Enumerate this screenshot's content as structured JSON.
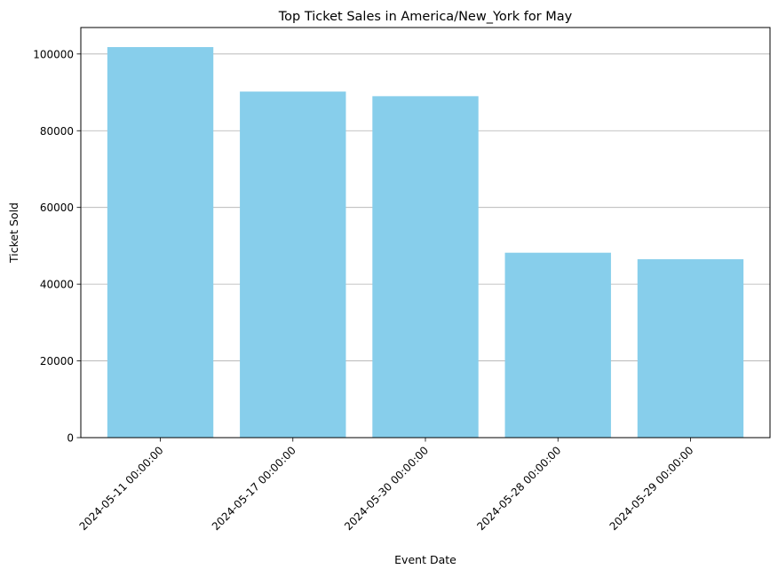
{
  "chart_data": {
    "type": "bar",
    "title": "Top Ticket Sales in America/New_York for May",
    "xlabel": "Event Date",
    "ylabel": "Ticket Sold",
    "categories": [
      "2024-05-11 00:00:00",
      "2024-05-17 00:00:00",
      "2024-05-30 00:00:00",
      "2024-05-28 00:00:00",
      "2024-05-29 00:00:00"
    ],
    "values": [
      101800,
      90200,
      89000,
      48200,
      46500
    ],
    "ylim": [
      0,
      106900
    ],
    "yticks": [
      0,
      20000,
      40000,
      60000,
      80000,
      100000
    ],
    "ytick_labels": [
      "0",
      "20000",
      "40000",
      "60000",
      "80000",
      "100000"
    ],
    "grid": "y",
    "bar_color": "#87CEEB",
    "grid_color": "#b0b0b0"
  }
}
